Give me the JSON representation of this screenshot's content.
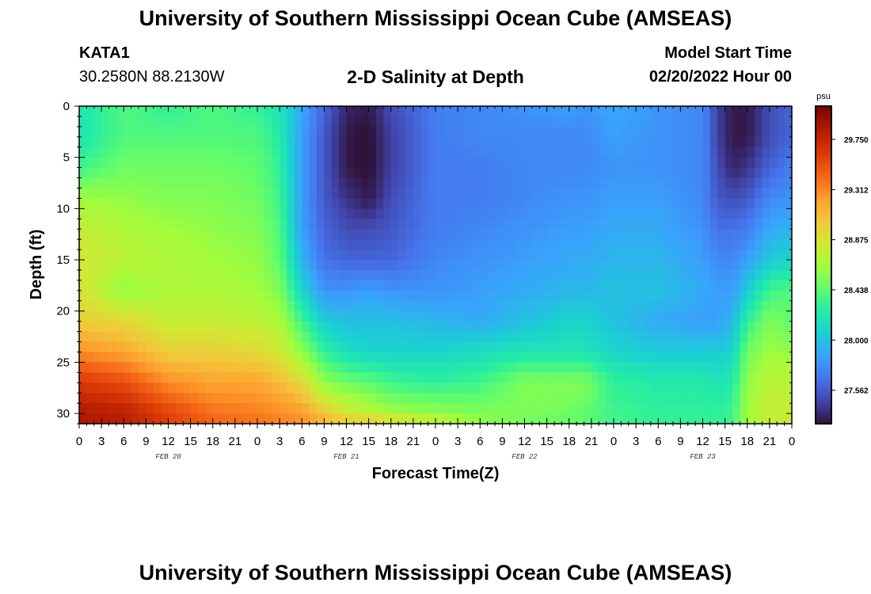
{
  "header": {
    "title": "University of Southern Mississippi Ocean Cube (AMSEAS)",
    "station": "KATA1",
    "coordinates": "30.2580N  88.2130W",
    "subtitle": "2-D Salinity at Depth",
    "model_start_label": "Model Start Time",
    "model_start_value": "02/20/2022 Hour 00"
  },
  "footer": {
    "title": "University of Southern Mississippi Ocean Cube (AMSEAS)"
  },
  "chart_data": {
    "type": "heatmap",
    "title": "2-D Salinity at Depth",
    "xlabel": "Forecast Time(Z)",
    "ylabel": "Depth (ft)",
    "x_range_hours": [
      0,
      96
    ],
    "y_range_ft": [
      0,
      31
    ],
    "y_inverted": true,
    "x_tick_labels": [
      "0",
      "3",
      "6",
      "9",
      "12",
      "15",
      "18",
      "21",
      "0",
      "3",
      "6",
      "9",
      "12",
      "15",
      "18",
      "21",
      "0",
      "3",
      "6",
      "9",
      "12",
      "15",
      "18",
      "21",
      "0",
      "3",
      "6",
      "9",
      "12",
      "15",
      "18",
      "21",
      "0"
    ],
    "y_ticks": [
      0,
      5,
      10,
      15,
      20,
      25,
      30
    ],
    "day_labels": [
      {
        "hour": 12,
        "text": "FEB 20"
      },
      {
        "hour": 36,
        "text": "FEB 21"
      },
      {
        "hour": 60,
        "text": "FEB 22"
      },
      {
        "hour": 84,
        "text": "FEB 23"
      }
    ],
    "colorbar": {
      "unit": "psu",
      "min": 27.27,
      "max": 30.04,
      "ticks": [
        27.562,
        28.0,
        28.438,
        28.875,
        29.312,
        29.75
      ],
      "tick_labels": [
        "27.562",
        "28.000",
        "28.438",
        "28.875",
        "29.312",
        "29.750"
      ],
      "colormap": [
        "#30123b",
        "#4145ab",
        "#4675ed",
        "#39a2fc",
        "#1bcfd4",
        "#24eca6",
        "#61fc6c",
        "#a4fc3b",
        "#d1e834",
        "#f3c63a",
        "#fe9b2d",
        "#f36315",
        "#d93806",
        "#b11901",
        "#7a0402"
      ]
    },
    "salinity_grid": {
      "times_hours": [
        0,
        6,
        12,
        18,
        24,
        27,
        30,
        33,
        36,
        39,
        42,
        48,
        54,
        60,
        66,
        68,
        72,
        78,
        84,
        86,
        88,
        90,
        93,
        96
      ],
      "depths_ft": [
        0,
        3,
        6,
        9,
        12,
        15,
        18,
        21,
        24,
        27,
        30,
        31
      ],
      "values_psu": [
        [
          28.2,
          28.4,
          28.3,
          28.4,
          28.3,
          28.2,
          27.9,
          27.6,
          27.35,
          27.3,
          27.5,
          27.7,
          27.75,
          27.8,
          27.85,
          27.8,
          27.9,
          27.8,
          27.75,
          27.45,
          27.3,
          27.3,
          27.5,
          27.6
        ],
        [
          28.2,
          28.4,
          28.4,
          28.4,
          28.4,
          28.25,
          27.85,
          27.55,
          27.3,
          27.25,
          27.45,
          27.7,
          27.75,
          27.75,
          27.75,
          27.75,
          27.85,
          27.8,
          27.75,
          27.45,
          27.3,
          27.3,
          27.5,
          27.6
        ],
        [
          28.35,
          28.5,
          28.5,
          28.5,
          28.45,
          28.3,
          27.85,
          27.55,
          27.3,
          27.25,
          27.45,
          27.7,
          27.7,
          27.75,
          27.75,
          27.75,
          27.8,
          27.8,
          27.75,
          27.5,
          27.35,
          27.4,
          27.6,
          27.7
        ],
        [
          28.65,
          28.6,
          28.55,
          28.55,
          28.5,
          28.35,
          27.85,
          27.55,
          27.4,
          27.3,
          27.5,
          27.7,
          27.7,
          27.75,
          27.8,
          27.8,
          27.85,
          27.85,
          27.75,
          27.55,
          27.5,
          27.55,
          27.75,
          27.8
        ],
        [
          28.8,
          28.7,
          28.65,
          28.6,
          28.55,
          28.4,
          27.85,
          27.6,
          27.5,
          27.5,
          27.55,
          27.7,
          27.75,
          27.8,
          27.85,
          27.85,
          27.9,
          27.9,
          27.8,
          27.65,
          27.65,
          27.7,
          27.9,
          27.95
        ],
        [
          28.85,
          28.75,
          28.7,
          28.65,
          28.6,
          28.45,
          27.95,
          27.65,
          27.6,
          27.6,
          27.6,
          27.75,
          27.8,
          27.85,
          27.9,
          27.9,
          27.95,
          27.95,
          27.85,
          27.75,
          27.75,
          27.85,
          28.05,
          28.1
        ],
        [
          28.9,
          28.6,
          28.7,
          28.7,
          28.65,
          28.55,
          28.1,
          27.8,
          27.8,
          27.85,
          27.8,
          27.8,
          27.85,
          27.9,
          27.95,
          27.95,
          28.0,
          28.0,
          27.9,
          27.85,
          27.85,
          28.05,
          28.35,
          28.4
        ],
        [
          29.0,
          28.95,
          28.8,
          28.8,
          28.75,
          28.7,
          28.35,
          28.05,
          28.0,
          28.0,
          28.0,
          27.95,
          27.9,
          28.0,
          28.1,
          28.1,
          28.0,
          27.9,
          27.85,
          27.85,
          27.95,
          28.3,
          28.55,
          28.45
        ],
        [
          29.3,
          29.2,
          29.0,
          29.0,
          28.95,
          28.85,
          28.6,
          28.3,
          28.15,
          28.1,
          28.1,
          28.1,
          28.15,
          28.2,
          28.2,
          28.2,
          28.1,
          28.05,
          28.05,
          28.05,
          28.1,
          28.5,
          28.65,
          28.6
        ],
        [
          29.65,
          29.55,
          29.3,
          29.2,
          29.2,
          29.1,
          28.95,
          28.6,
          28.5,
          28.45,
          28.35,
          28.3,
          28.35,
          28.55,
          28.55,
          28.55,
          28.3,
          28.25,
          28.25,
          28.2,
          28.25,
          28.6,
          28.75,
          28.75
        ],
        [
          29.85,
          29.8,
          29.6,
          29.4,
          29.35,
          29.3,
          29.25,
          29.05,
          28.85,
          28.75,
          28.65,
          28.6,
          28.55,
          28.55,
          28.5,
          28.45,
          28.35,
          28.3,
          28.3,
          28.3,
          28.35,
          28.65,
          28.8,
          28.8
        ],
        [
          29.85,
          29.8,
          29.6,
          29.45,
          29.4,
          29.35,
          29.3,
          29.15,
          29.05,
          29.1,
          29.05,
          28.85,
          28.6,
          28.5,
          28.45,
          28.45,
          28.35,
          28.3,
          28.3,
          28.3,
          28.35,
          28.65,
          28.8,
          28.8
        ]
      ]
    }
  }
}
